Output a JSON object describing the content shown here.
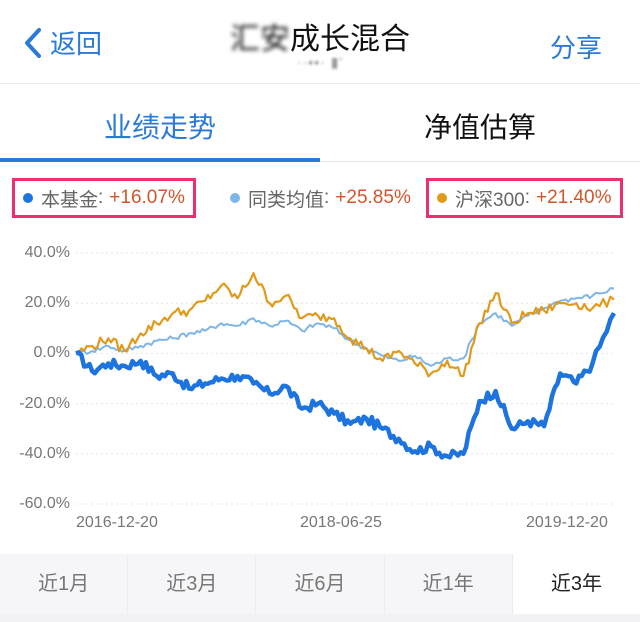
{
  "navbar": {
    "back_label": "返回",
    "title_blurred": "汇安",
    "title_clear": "成长混合",
    "subtitle": "··▪▪· ▮'",
    "share_label": "分享"
  },
  "tabs": [
    {
      "label": "业绩走势",
      "active": true
    },
    {
      "label": "净值估算",
      "active": false
    }
  ],
  "legend": [
    {
      "name": "本基金",
      "value": "+16.07%",
      "color": "#1e74de",
      "highlighted": true
    },
    {
      "name": "同类均值",
      "value": "+25.85%",
      "color": "#7fb6e8",
      "highlighted": false
    },
    {
      "name": "沪深300",
      "value": "+21.40%",
      "color": "#e19a1a",
      "highlighted": true
    }
  ],
  "legend_sep": ":",
  "periods": [
    {
      "label": "近1月",
      "active": false
    },
    {
      "label": "近3月",
      "active": false
    },
    {
      "label": "近6月",
      "active": false
    },
    {
      "label": "近1年",
      "active": false
    },
    {
      "label": "近3年",
      "active": true
    }
  ],
  "colors": {
    "accent": "#2a7ad8",
    "highlight_box": "#ee2f6b",
    "value_text": "#d4552a"
  },
  "chart_data": {
    "type": "line",
    "title": "",
    "xlabel": "",
    "ylabel": "",
    "ylim": [
      -60,
      40
    ],
    "yticks": [
      "40.0%",
      "20.0%",
      "0.0%",
      "-20.0%",
      "-40.0%",
      "-60.0%"
    ],
    "xticks": [
      "2016-12-20",
      "2018-06-25",
      "2019-12-20"
    ],
    "grid": true,
    "legend_position": "top",
    "x": [
      0,
      3,
      6,
      9,
      12,
      15,
      18,
      21,
      24,
      27,
      30,
      33,
      36,
      39,
      42,
      45,
      48,
      51,
      54,
      57,
      60,
      63,
      66,
      69,
      72,
      75,
      78,
      81,
      84,
      87,
      90,
      93,
      96,
      100
    ],
    "series": [
      {
        "name": "本基金",
        "color": "#1e74de",
        "final": 16.07,
        "values": [
          0,
          -7,
          -4,
          -5,
          -3,
          -9,
          -8,
          -14,
          -12,
          -10,
          -9,
          -12,
          -16,
          -13,
          -22,
          -20,
          -24,
          -28,
          -26,
          -30,
          -34,
          -39,
          -37,
          -41,
          -40,
          -19,
          -15,
          -30,
          -27,
          -29,
          -8,
          -12,
          -4,
          16.07
        ]
      },
      {
        "name": "同类均值",
        "color": "#7fb6e8",
        "final": 25.85,
        "values": [
          0,
          1,
          3,
          1,
          3,
          5,
          6,
          8,
          9,
          12,
          11,
          14,
          11,
          13,
          9,
          12,
          10,
          5,
          2,
          -1,
          -3,
          -1,
          -5,
          -2,
          -2,
          12,
          16,
          11,
          15,
          18,
          21,
          22,
          23,
          25.85
        ]
      },
      {
        "name": "沪深300",
        "color": "#e19a1a",
        "final": 21.4,
        "values": [
          0,
          3,
          6,
          1,
          8,
          12,
          16,
          17,
          21,
          27,
          22,
          32,
          20,
          23,
          14,
          15,
          14,
          6,
          2,
          -3,
          1,
          -4,
          -8,
          -3,
          -9,
          12,
          24,
          12,
          16,
          17,
          20,
          20,
          18,
          21.4
        ]
      }
    ]
  }
}
